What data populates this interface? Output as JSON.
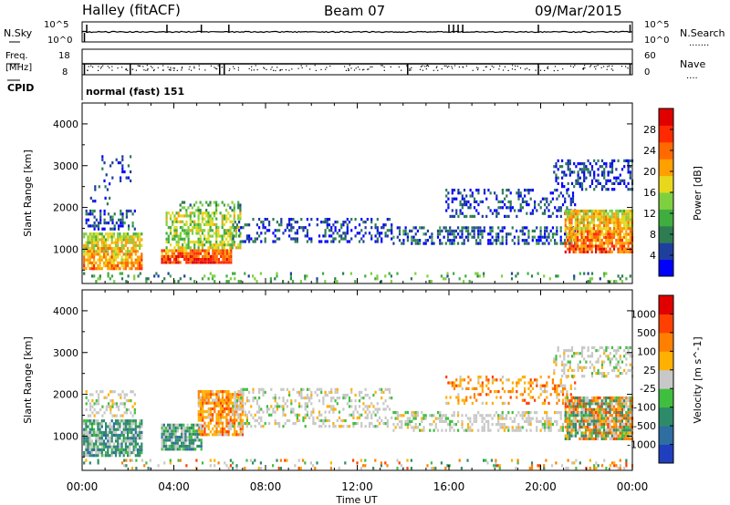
{
  "header": {
    "station": "Halley (fitACF)",
    "beam": "Beam 07",
    "date": "09/Mar/2015"
  },
  "noise_panel": {
    "left_label": "N.Sky",
    "right_label": "N.Search",
    "left_ticks": [
      "10^5",
      "10^0"
    ],
    "right_ticks": [
      "10^5",
      "10^0"
    ],
    "right_legend_glyph": "......."
  },
  "freq_panel": {
    "left_label_1": "Freq.",
    "left_label_2": "[MHz]",
    "right_label": "Nave",
    "left_ticks": [
      "18",
      "8"
    ],
    "right_ticks": [
      "60",
      "0"
    ],
    "right_legend_glyph": "...."
  },
  "cpid": {
    "label": "CPID",
    "value": "normal (fast) 151"
  },
  "time_axis": {
    "label": "Time UT",
    "ticks": [
      "00:00",
      "04:00",
      "08:00",
      "12:00",
      "16:00",
      "20:00",
      "00:00"
    ]
  },
  "chart_data": [
    {
      "type": "heatmap",
      "title": "",
      "xlabel": "Time UT",
      "ylabel": "Slant Range [km]",
      "x_ticks": [
        "00:00",
        "04:00",
        "08:00",
        "12:00",
        "16:00",
        "20:00",
        "00:00"
      ],
      "x_range_hours": [
        0,
        24
      ],
      "y_ticks": [
        1000,
        2000,
        3000,
        4000
      ],
      "ylim": [
        180,
        4500
      ],
      "colorbar": {
        "label": "Power [dB]",
        "ticks": [
          "4",
          "8",
          "12",
          "16",
          "20",
          "24",
          "28"
        ],
        "range": [
          0,
          30
        ],
        "colors": [
          "#0000ff",
          "#1f3f9f",
          "#2e7d52",
          "#3fae3f",
          "#7fd040",
          "#e8d81c",
          "#ffa000",
          "#ff6a00",
          "#ff2a00",
          "#e00000"
        ]
      },
      "regions": [
        {
          "t0": 0.0,
          "t1": 2.6,
          "r0": 500,
          "r1": 1400,
          "level": 18,
          "scatter": 0.8
        },
        {
          "t0": 0.1,
          "t1": 2.3,
          "r0": 1450,
          "r1": 1950,
          "level": 5,
          "scatter": 0.35
        },
        {
          "t0": 0.3,
          "t1": 1.2,
          "r0": 2050,
          "r1": 2600,
          "level": 4,
          "scatter": 0.2
        },
        {
          "t0": 0.8,
          "t1": 2.2,
          "r0": 2600,
          "r1": 3250,
          "level": 4,
          "scatter": 0.15
        },
        {
          "t0": 3.4,
          "t1": 6.5,
          "r0": 650,
          "r1": 1000,
          "level": 24,
          "scatter": 0.9
        },
        {
          "t0": 3.6,
          "t1": 6.9,
          "r0": 1000,
          "r1": 1900,
          "level": 14,
          "scatter": 0.6
        },
        {
          "t0": 4.2,
          "t1": 6.9,
          "r0": 1900,
          "r1": 2150,
          "level": 10,
          "scatter": 0.35
        },
        {
          "t0": 6.5,
          "t1": 13.5,
          "r0": 1150,
          "r1": 1750,
          "level": 4,
          "scatter": 0.3
        },
        {
          "t0": 13.5,
          "t1": 21.5,
          "r0": 1100,
          "r1": 1550,
          "level": 5,
          "scatter": 0.45
        },
        {
          "t0": 15.8,
          "t1": 21.5,
          "r0": 1750,
          "r1": 2450,
          "level": 4,
          "scatter": 0.3
        },
        {
          "t0": 20.5,
          "t1": 24.0,
          "r0": 2400,
          "r1": 3150,
          "level": 4,
          "scatter": 0.35
        },
        {
          "t0": 21.0,
          "t1": 24.0,
          "r0": 900,
          "r1": 1950,
          "level": 20,
          "scatter": 0.85
        },
        {
          "t0": 0.0,
          "t1": 24.0,
          "r0": 200,
          "r1": 450,
          "level": 10,
          "scatter": 0.15
        }
      ]
    },
    {
      "type": "heatmap",
      "title": "",
      "xlabel": "Time UT",
      "ylabel": "Slant Range [km]",
      "x_ticks": [
        "00:00",
        "04:00",
        "08:00",
        "12:00",
        "16:00",
        "20:00",
        "00:00"
      ],
      "x_range_hours": [
        0,
        24
      ],
      "y_ticks": [
        1000,
        2000,
        3000,
        4000
      ],
      "ylim": [
        180,
        4500
      ],
      "colorbar": {
        "label": "Velocity [m s^-1]",
        "ticks": [
          "1000",
          "500",
          "100",
          "25",
          "-25",
          "-100",
          "-500",
          "-1000"
        ],
        "colors": [
          "#1f3fbf",
          "#2e6ea0",
          "#2e8b6a",
          "#3fbf3f",
          "#c8c8c8",
          "#ffb000",
          "#ff8000",
          "#ff4000",
          "#e00000"
        ]
      },
      "regions": [
        {
          "t0": 0.0,
          "t1": 2.6,
          "r0": 500,
          "r1": 1400,
          "class": "green",
          "scatter": 0.8
        },
        {
          "t0": 0.1,
          "t1": 2.3,
          "r0": 1450,
          "r1": 2100,
          "class": "grey",
          "scatter": 0.35
        },
        {
          "t0": 3.4,
          "t1": 5.2,
          "r0": 650,
          "r1": 1300,
          "class": "green",
          "scatter": 0.85
        },
        {
          "t0": 5.0,
          "t1": 7.0,
          "r0": 1000,
          "r1": 2100,
          "class": "orange",
          "scatter": 0.75
        },
        {
          "t0": 6.5,
          "t1": 13.5,
          "r0": 1200,
          "r1": 2150,
          "class": "grey",
          "scatter": 0.3
        },
        {
          "t0": 13.5,
          "t1": 21.5,
          "r0": 1100,
          "r1": 1600,
          "class": "grey",
          "scatter": 0.45
        },
        {
          "t0": 15.8,
          "t1": 21.5,
          "r0": 1750,
          "r1": 2450,
          "class": "orange",
          "scatter": 0.3
        },
        {
          "t0": 20.5,
          "t1": 24.0,
          "r0": 2400,
          "r1": 3150,
          "class": "grey",
          "scatter": 0.35
        },
        {
          "t0": 21.0,
          "t1": 24.0,
          "r0": 900,
          "r1": 1950,
          "class": "mixed",
          "scatter": 0.85
        },
        {
          "t0": 0.0,
          "t1": 24.0,
          "r0": 200,
          "r1": 450,
          "class": "mixed",
          "scatter": 0.15
        }
      ]
    }
  ]
}
